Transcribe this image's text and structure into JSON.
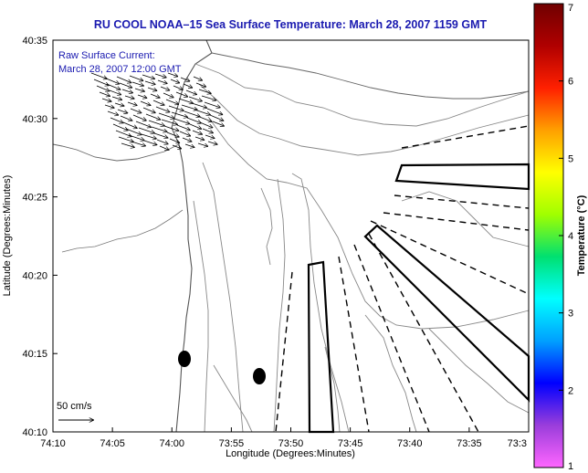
{
  "title": "RU COOL  NOAA–15  Sea Surface Temperature:  March 28, 2007 1159 GMT",
  "inset": {
    "line1": "Raw Surface Current:",
    "line2": "March 28, 2007 12:00 GMT",
    "scale_label": "50 cm/s"
  },
  "axes": {
    "xlabel": "Longitude (Degrees:Minutes)",
    "ylabel": "Latitude (Degrees:Minutes)",
    "x_ticks": [
      "74:10",
      "74:05",
      "74:00",
      "73:55",
      "73:50",
      "73:45",
      "73:40",
      "73:35",
      "73:3"
    ],
    "y_ticks": [
      "40:35",
      "40:30",
      "40:25",
      "40:20",
      "40:15",
      "40:10"
    ]
  },
  "colorbar": {
    "title": "Temperature (°C)",
    "ticks": [
      "7",
      "6",
      "5",
      "4",
      "3",
      "2",
      "1"
    ],
    "colors": [
      "#ff66ff",
      "#9a3ddb",
      "#0000ff",
      "#00a0ff",
      "#00ffff",
      "#00e070",
      "#a0ff00",
      "#ffff00",
      "#ffa000",
      "#ff2000",
      "#b00000",
      "#700000"
    ]
  }
}
